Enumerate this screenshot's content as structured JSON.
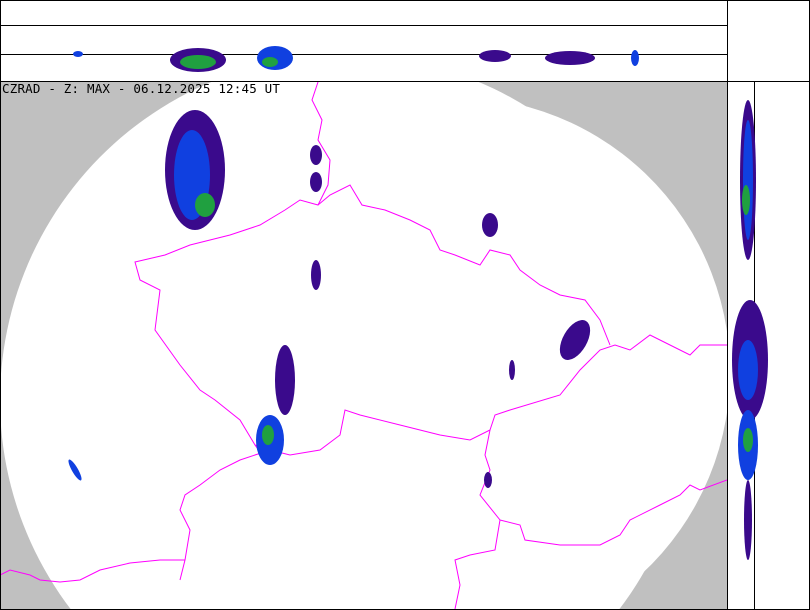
{
  "title": "CZRAD - Z: MAX - 06.12.2025 12:45 UT",
  "colors": {
    "outside_coverage": "#c0c0c0",
    "coverage": "#ffffff",
    "borders": "#ff00ff",
    "echo_weak": "#3a0a8c",
    "echo_mid": "#1040e0",
    "echo_strong": "#20a040",
    "frame": "#000000"
  },
  "panels": [
    "top-projection",
    "main-map",
    "side-projection"
  ]
}
